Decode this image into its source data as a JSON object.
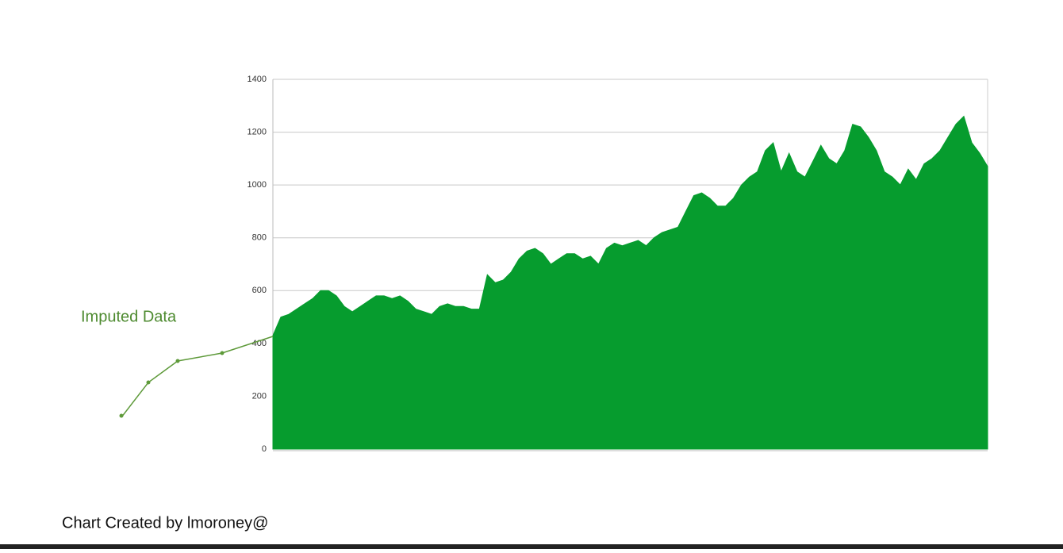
{
  "chart_data": {
    "type": "area",
    "values": [
      430,
      500,
      510,
      530,
      550,
      570,
      600,
      600,
      580,
      540,
      520,
      540,
      560,
      580,
      580,
      570,
      580,
      560,
      530,
      520,
      510,
      540,
      550,
      540,
      540,
      530,
      530,
      660,
      630,
      640,
      670,
      720,
      750,
      760,
      740,
      700,
      720,
      740,
      740,
      720,
      730,
      700,
      760,
      780,
      770,
      780,
      790,
      770,
      800,
      820,
      830,
      840,
      900,
      960,
      970,
      950,
      920,
      920,
      950,
      1000,
      1030,
      1050,
      1130,
      1160,
      1050,
      1120,
      1050,
      1030,
      1090,
      1150,
      1100,
      1080,
      1130,
      1230,
      1220,
      1180,
      1130,
      1050,
      1030,
      1000,
      1060,
      1020,
      1080,
      1100,
      1130,
      1180,
      1230,
      1260,
      1160,
      1120,
      1070
    ],
    "color": "#069c2e",
    "ylim": [
      0,
      1400
    ],
    "yticks": [
      0,
      200,
      400,
      600,
      800,
      1000,
      1200,
      1400
    ],
    "grid": true,
    "annotation": "Imputed Data",
    "footer": "Chart Created by lmoroney@"
  }
}
